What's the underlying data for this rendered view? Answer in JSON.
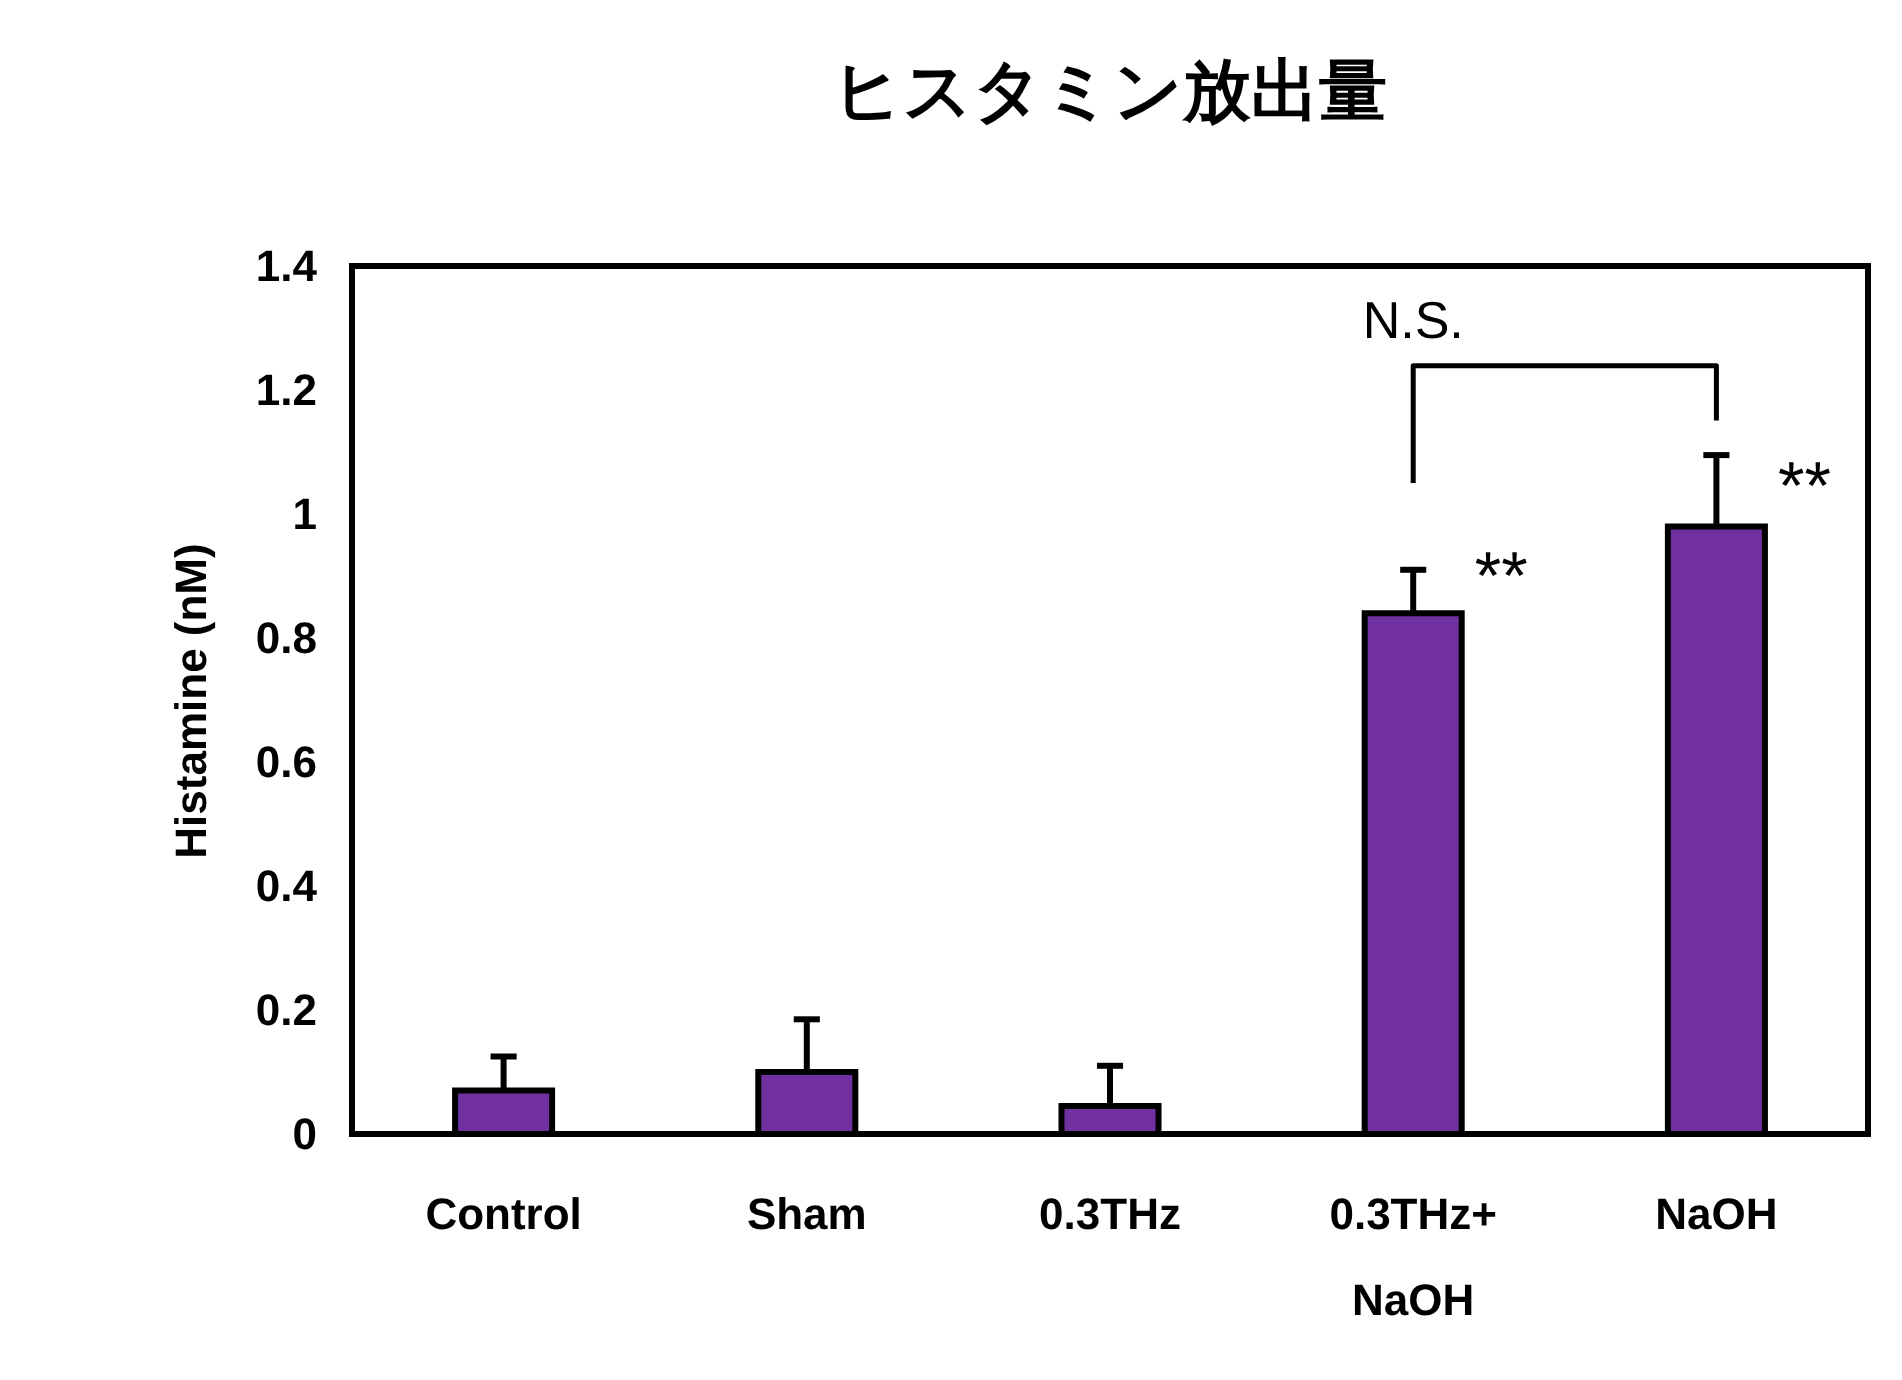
{
  "chart_data": {
    "type": "bar",
    "title": "ヒスタミン放出量",
    "ylabel": "Histamine (nM)",
    "categories": [
      "Control",
      "Sham",
      "0.3THz",
      "0.3THz+\nNaOH",
      "NaOH"
    ],
    "values": [
      0.07,
      0.1,
      0.045,
      0.84,
      0.98
    ],
    "errors": [
      [
        0.07,
        0.125
      ],
      [
        0.1,
        0.185
      ],
      [
        0.045,
        0.11
      ],
      [
        0.84,
        0.91
      ],
      [
        0.98,
        1.095
      ]
    ],
    "color": "#7030a0",
    "ylim": [
      0,
      1.4
    ],
    "yticks": [
      0,
      0.2,
      0.4,
      0.6,
      0.8,
      1,
      1.2,
      1.4
    ],
    "annotations": [
      "N.S.",
      {
        "text": "**",
        "x": "0.3THz+\nNaOH",
        "y": 0.895
      },
      {
        "text": "**",
        "x": "NaOH",
        "y": 1.04
      }
    ],
    "grid": false
  }
}
